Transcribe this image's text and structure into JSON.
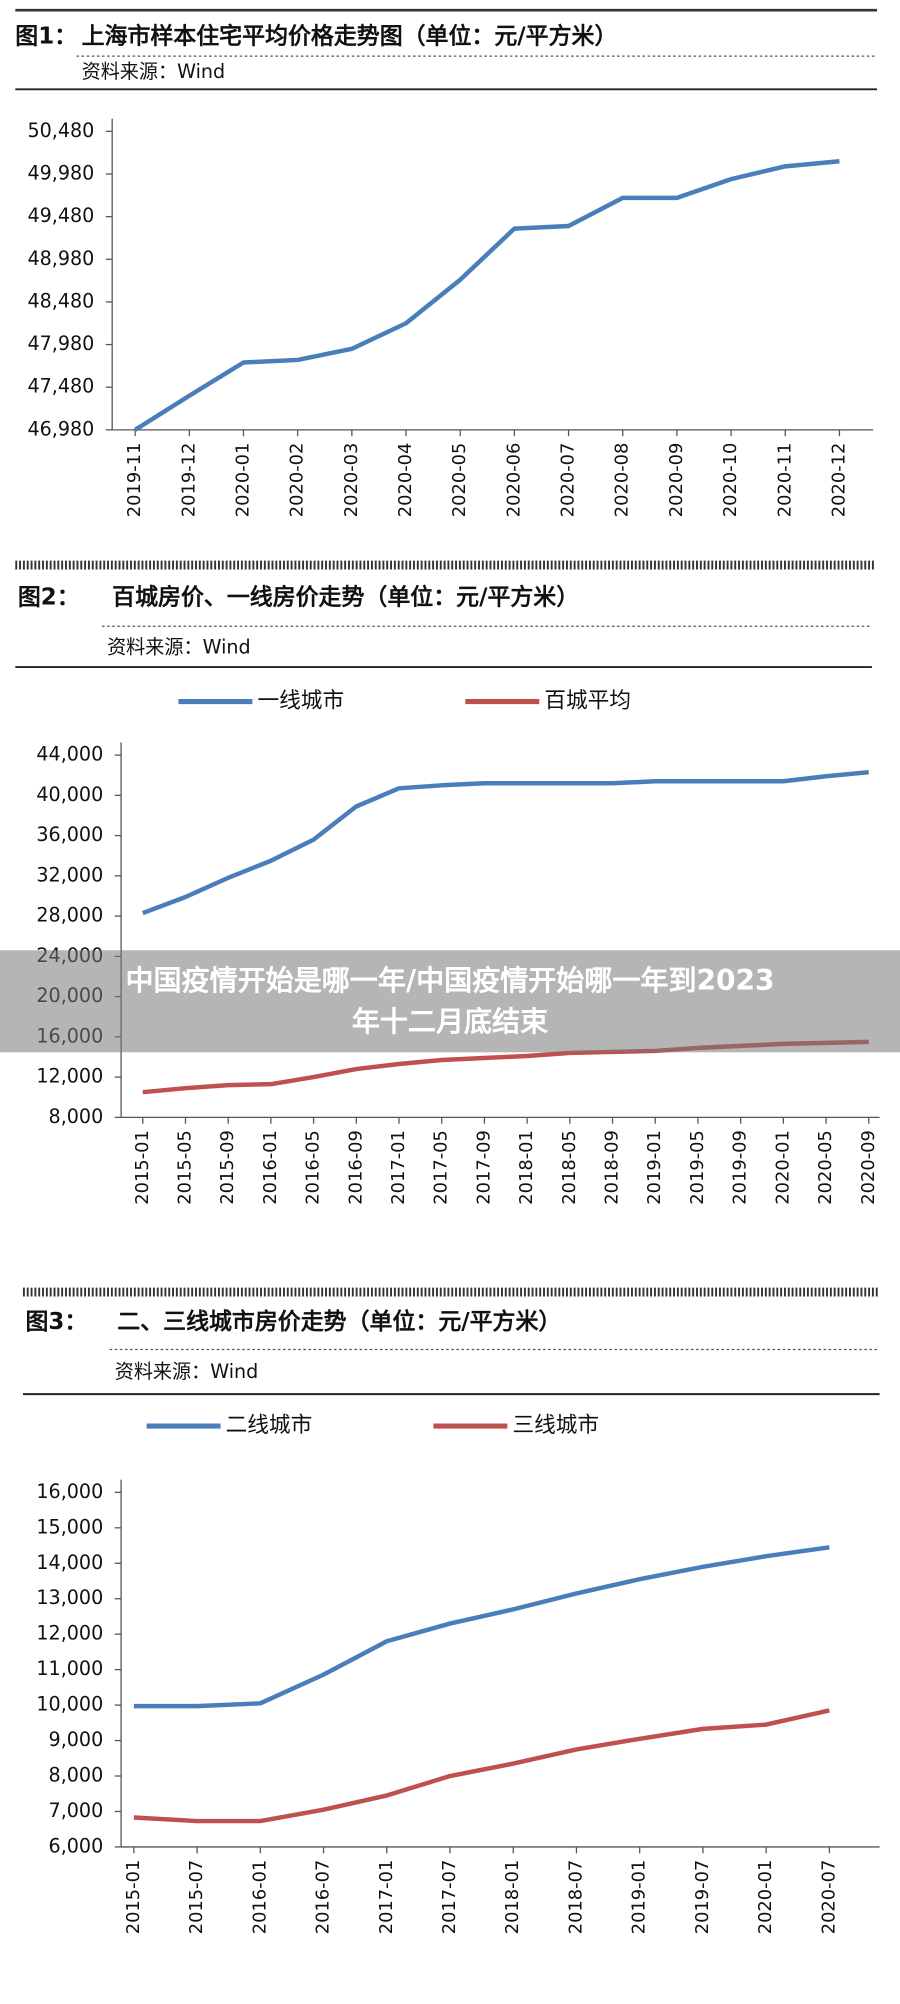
{
  "chart_data": [
    {
      "type": "line",
      "figure_label": "图1：",
      "title": "上海市样本住宅平均价格走势图（单位：元/平方米）",
      "source": "资料来源：Wind",
      "categories": [
        "2019-11",
        "2019-12",
        "2020-01",
        "2020-02",
        "2020-03",
        "2020-04",
        "2020-05",
        "2020-06",
        "2020-07",
        "2020-08",
        "2020-09",
        "2020-10",
        "2020-11",
        "2020-12"
      ],
      "series": [
        {
          "color": "#4a7ebb",
          "values": [
            46980,
            47380,
            47770,
            47800,
            47930,
            48230,
            48740,
            49340,
            49370,
            49700,
            49700,
            49920,
            50070,
            50130
          ]
        }
      ],
      "ylim": [
        46980,
        50480
      ],
      "yticks": [
        {
          "value": 46980,
          "label": "46,980"
        },
        {
          "value": 47480,
          "label": "47,480"
        },
        {
          "value": 47980,
          "label": "47,980"
        },
        {
          "value": 48480,
          "label": "48,480"
        },
        {
          "value": 48980,
          "label": "48,980"
        },
        {
          "value": 49480,
          "label": "49,480"
        },
        {
          "value": 49980,
          "label": "49,980"
        },
        {
          "value": 50480,
          "label": "50,480"
        }
      ]
    },
    {
      "type": "line",
      "figure_label": "图2：",
      "title": "百城房价、一线房价走势（单位：元/平方米）",
      "source": "资料来源：Wind",
      "categories": [
        "2015-01",
        "2015-05",
        "2015-09",
        "2016-01",
        "2016-05",
        "2016-09",
        "2017-01",
        "2017-05",
        "2017-09",
        "2018-01",
        "2018-05",
        "2018-09",
        "2019-01",
        "2019-05",
        "2019-09",
        "2020-01",
        "2020-05",
        "2020-09"
      ],
      "series": [
        {
          "name": "一线城市",
          "color": "#4a7ebb",
          "values": [
            28300,
            29900,
            31800,
            33500,
            35600,
            38900,
            40700,
            41000,
            41200,
            41200,
            41200,
            41200,
            41400,
            41400,
            41400,
            41400,
            41900,
            42300
          ]
        },
        {
          "name": "百城平均",
          "color": "#c0504d",
          "values": [
            10500,
            10900,
            11200,
            11300,
            12000,
            12800,
            13300,
            13700,
            13900,
            14100,
            14400,
            14500,
            14600,
            14900,
            15100,
            15300,
            15400,
            15500
          ]
        }
      ],
      "ylim": [
        8000,
        44000
      ],
      "yticks": [
        {
          "value": 8000,
          "label": "8,000"
        },
        {
          "value": 12000,
          "label": "12,000"
        },
        {
          "value": 16000,
          "label": "16,000"
        },
        {
          "value": 20000,
          "label": "20,000"
        },
        {
          "value": 24000,
          "label": "24,000"
        },
        {
          "value": 28000,
          "label": "28,000"
        },
        {
          "value": 32000,
          "label": "32,000"
        },
        {
          "value": 36000,
          "label": "36,000"
        },
        {
          "value": 40000,
          "label": "40,000"
        },
        {
          "value": 44000,
          "label": "44,000"
        }
      ]
    },
    {
      "type": "line",
      "figure_label": "图3：",
      "title": "二、三线城市房价走势（单位：元/平方米）",
      "source": "资料来源：Wind",
      "categories": [
        "2015-01",
        "2015-07",
        "2016-01",
        "2016-07",
        "2017-01",
        "2017-07",
        "2018-01",
        "2018-07",
        "2019-01",
        "2019-07",
        "2020-01",
        "2020-07"
      ],
      "series": [
        {
          "name": "二线城市",
          "color": "#4a7ebb",
          "values": [
            9970,
            9970,
            10050,
            10860,
            11800,
            12300,
            12700,
            13150,
            13550,
            13900,
            14200,
            14450
          ]
        },
        {
          "name": "三线城市",
          "color": "#c0504d",
          "values": [
            6830,
            6730,
            6730,
            7050,
            7450,
            8000,
            8350,
            8750,
            9050,
            9330,
            9450,
            9850
          ]
        }
      ],
      "ylim": [
        6000,
        16000
      ],
      "yticks": [
        {
          "value": 6000,
          "label": "6,000"
        },
        {
          "value": 7000,
          "label": "7,000"
        },
        {
          "value": 8000,
          "label": "8,000"
        },
        {
          "value": 9000,
          "label": "9,000"
        },
        {
          "value": 10000,
          "label": "10,000"
        },
        {
          "value": 11000,
          "label": "11,000"
        },
        {
          "value": 12000,
          "label": "12,000"
        },
        {
          "value": 13000,
          "label": "13,000"
        },
        {
          "value": 14000,
          "label": "14,000"
        },
        {
          "value": 15000,
          "label": "15,000"
        },
        {
          "value": 16000,
          "label": "16,000"
        }
      ]
    }
  ],
  "overlay_title": [
    "中国疫情开始是哪一年/中国疫情开始哪一年到2023",
    "年十二月底结束"
  ]
}
